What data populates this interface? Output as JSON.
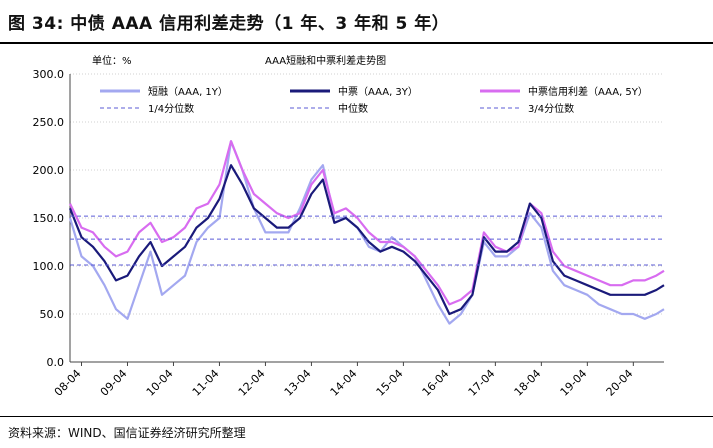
{
  "figure_title": "图 34: 中债 AAA 信用利差走势（1 年、3 年和 5 年）",
  "source": "资料来源：WIND、国信证券经济研究所整理",
  "chart_data": {
    "type": "line",
    "title": "AAA短融和中票利差走势图",
    "unit_label": "单位：%",
    "ylim": [
      0,
      300
    ],
    "yticks": [
      0,
      50,
      100,
      150,
      200,
      250,
      300
    ],
    "ytick_labels": [
      "0.0",
      "50.0",
      "100.0",
      "150.0",
      "200.0",
      "250.0",
      "300.0"
    ],
    "xlim": [
      2008.0,
      2020.917
    ],
    "xticks": [
      2008.25,
      2009.25,
      2010.25,
      2011.25,
      2012.25,
      2013.25,
      2014.25,
      2015.25,
      2016.25,
      2017.25,
      2018.25,
      2019.25,
      2020.25
    ],
    "xtick_labels": [
      "08-04",
      "09-04",
      "10-04",
      "11-04",
      "12-04",
      "13-04",
      "14-04",
      "15-04",
      "16-04",
      "17-04",
      "18-04",
      "19-04",
      "20-04"
    ],
    "colors": {
      "short": "#a3a8f0",
      "mid3y": "#1a1a7a",
      "mid5y": "#d86cf0",
      "ref": "#5b5bd6"
    },
    "series": [
      {
        "name": "短融（AAA, 1Y）",
        "key": "short",
        "style": "solid",
        "x": [
          2008.0,
          2008.25,
          2008.5,
          2008.75,
          2009.0,
          2009.25,
          2009.5,
          2009.75,
          2010.0,
          2010.25,
          2010.5,
          2010.75,
          2011.0,
          2011.25,
          2011.5,
          2011.75,
          2012.0,
          2012.25,
          2012.5,
          2012.75,
          2013.0,
          2013.25,
          2013.5,
          2013.75,
          2014.0,
          2014.25,
          2014.5,
          2014.75,
          2015.0,
          2015.25,
          2015.5,
          2015.75,
          2016.0,
          2016.25,
          2016.5,
          2016.75,
          2017.0,
          2017.25,
          2017.5,
          2017.75,
          2018.0,
          2018.25,
          2018.5,
          2018.75,
          2019.0,
          2019.25,
          2019.5,
          2019.75,
          2020.0,
          2020.25,
          2020.5,
          2020.75,
          2020.917
        ],
        "values": [
          150,
          110,
          100,
          80,
          55,
          45,
          80,
          115,
          70,
          80,
          90,
          125,
          140,
          150,
          230,
          200,
          160,
          135,
          135,
          135,
          160,
          190,
          205,
          150,
          150,
          140,
          120,
          115,
          130,
          120,
          110,
          85,
          60,
          40,
          50,
          70,
          125,
          110,
          110,
          120,
          155,
          140,
          95,
          80,
          75,
          70,
          60,
          55,
          50,
          50,
          45,
          50,
          55
        ]
      },
      {
        "name": "中票（AAA, 3Y）",
        "key": "mid3y",
        "style": "solid",
        "x": [
          2008.0,
          2008.25,
          2008.5,
          2008.75,
          2009.0,
          2009.25,
          2009.5,
          2009.75,
          2010.0,
          2010.25,
          2010.5,
          2010.75,
          2011.0,
          2011.25,
          2011.5,
          2011.75,
          2012.0,
          2012.25,
          2012.5,
          2012.75,
          2013.0,
          2013.25,
          2013.5,
          2013.75,
          2014.0,
          2014.25,
          2014.5,
          2014.75,
          2015.0,
          2015.25,
          2015.5,
          2015.75,
          2016.0,
          2016.25,
          2016.5,
          2016.75,
          2017.0,
          2017.25,
          2017.5,
          2017.75,
          2018.0,
          2018.25,
          2018.5,
          2018.75,
          2019.0,
          2019.25,
          2019.5,
          2019.75,
          2020.0,
          2020.25,
          2020.5,
          2020.75,
          2020.917
        ],
        "values": [
          160,
          130,
          120,
          105,
          85,
          90,
          110,
          125,
          100,
          110,
          120,
          140,
          150,
          170,
          205,
          185,
          160,
          150,
          140,
          140,
          150,
          175,
          190,
          145,
          150,
          140,
          125,
          115,
          120,
          115,
          105,
          90,
          75,
          50,
          55,
          70,
          130,
          115,
          115,
          125,
          165,
          150,
          105,
          90,
          85,
          80,
          75,
          70,
          70,
          70,
          70,
          75,
          80
        ]
      },
      {
        "name": "中票信用利差（AAA, 5Y）",
        "key": "mid5y",
        "style": "solid",
        "x": [
          2008.0,
          2008.25,
          2008.5,
          2008.75,
          2009.0,
          2009.25,
          2009.5,
          2009.75,
          2010.0,
          2010.25,
          2010.5,
          2010.75,
          2011.0,
          2011.25,
          2011.5,
          2011.75,
          2012.0,
          2012.25,
          2012.5,
          2012.75,
          2013.0,
          2013.25,
          2013.5,
          2013.75,
          2014.0,
          2014.25,
          2014.5,
          2014.75,
          2015.0,
          2015.25,
          2015.5,
          2015.75,
          2016.0,
          2016.25,
          2016.5,
          2016.75,
          2017.0,
          2017.25,
          2017.5,
          2017.75,
          2018.0,
          2018.25,
          2018.5,
          2018.75,
          2019.0,
          2019.25,
          2019.5,
          2019.75,
          2020.0,
          2020.25,
          2020.5,
          2020.75,
          2020.917
        ],
        "values": [
          165,
          140,
          135,
          120,
          110,
          115,
          135,
          145,
          125,
          130,
          140,
          160,
          165,
          185,
          230,
          200,
          175,
          165,
          155,
          150,
          155,
          185,
          200,
          155,
          160,
          150,
          135,
          125,
          125,
          120,
          110,
          95,
          80,
          60,
          65,
          75,
          135,
          120,
          115,
          120,
          165,
          155,
          115,
          100,
          95,
          90,
          85,
          80,
          80,
          85,
          85,
          90,
          95
        ]
      },
      {
        "name": "1/4分位数",
        "key": "ref",
        "style": "dashed",
        "x": [
          2008.0,
          2020.917
        ],
        "values": [
          101,
          101
        ]
      },
      {
        "name": "中位数",
        "key": "ref",
        "style": "dashed",
        "x": [
          2008.0,
          2020.917
        ],
        "values": [
          128,
          128
        ]
      },
      {
        "name": "3/4分位数",
        "key": "ref",
        "style": "dashed",
        "x": [
          2008.0,
          2020.917
        ],
        "values": [
          152,
          152
        ]
      }
    ]
  }
}
